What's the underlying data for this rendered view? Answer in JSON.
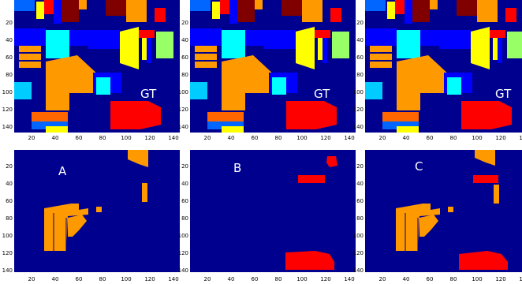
{
  "colors": {
    "background": "#ffffff",
    "plot_bg": "#00008f",
    "orange": "#ff9900",
    "red": "#ff0000",
    "yellow": "#ffff00",
    "blue": "#0000ff",
    "mid_blue": "#0066ff",
    "dark_red": "#800000",
    "cyan": "#00ffff",
    "light_green": "#99ff66",
    "dark_brown": "#990000",
    "teal": "#00ccff"
  },
  "axes": {
    "x_ticks": [
      "20",
      "40",
      "60",
      "80",
      "100",
      "120",
      "140"
    ],
    "y_ticks": [
      "20",
      "40",
      "60",
      "80",
      "100",
      "120",
      "140"
    ]
  },
  "panels": [
    {
      "id": "gt1",
      "label": "GT"
    },
    {
      "id": "gt2",
      "label": "GT"
    },
    {
      "id": "gt3",
      "label": "GT"
    },
    {
      "id": "a",
      "label": "A"
    },
    {
      "id": "b",
      "label": "B"
    },
    {
      "id": "c",
      "label": "C"
    }
  ]
}
